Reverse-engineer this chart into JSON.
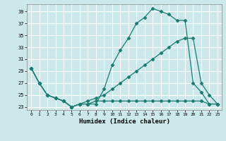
{
  "xlabel": "Humidex (Indice chaleur)",
  "background_color": "#cce8ea",
  "grid_color": "#ffffff",
  "line_color": "#1b7b70",
  "xlim": [
    -0.5,
    23.5
  ],
  "ylim": [
    22.5,
    40.2
  ],
  "xticks": [
    0,
    1,
    2,
    3,
    4,
    5,
    6,
    7,
    8,
    9,
    10,
    11,
    12,
    13,
    14,
    15,
    16,
    17,
    18,
    19,
    20,
    21,
    22,
    23
  ],
  "yticks": [
    23,
    25,
    27,
    29,
    31,
    33,
    35,
    37,
    39
  ],
  "line1_x": [
    0,
    1,
    2,
    3,
    4,
    5,
    6,
    7,
    8,
    9,
    10,
    11,
    12,
    13,
    14,
    15,
    16,
    17,
    18,
    19,
    20,
    21,
    22,
    23
  ],
  "line1_y": [
    29.5,
    27,
    25,
    24.5,
    24,
    23,
    23.5,
    23.5,
    23.5,
    26,
    30,
    32.5,
    34.5,
    37,
    38,
    39.5,
    39,
    38.5,
    37.5,
    37.5,
    27,
    25.5,
    23.5,
    23.5
  ],
  "line2_x": [
    0,
    1,
    2,
    3,
    4,
    5,
    6,
    7,
    8,
    9,
    10,
    11,
    12,
    13,
    14,
    15,
    16,
    17,
    18,
    19,
    20,
    21,
    22,
    23
  ],
  "line2_y": [
    29.5,
    27,
    25,
    24.5,
    24,
    23,
    23.5,
    23.5,
    24,
    24,
    24,
    24,
    24,
    24,
    24,
    24,
    24,
    24,
    24,
    24,
    24,
    24,
    23.5,
    23.5
  ],
  "line3_x": [
    0,
    1,
    2,
    3,
    4,
    5,
    6,
    7,
    8,
    9,
    10,
    11,
    12,
    13,
    14,
    15,
    16,
    17,
    18,
    19,
    20,
    21,
    22,
    23
  ],
  "line3_y": [
    29.5,
    27,
    25,
    24.5,
    24,
    23,
    23.5,
    24,
    24.5,
    25,
    26,
    27,
    28,
    29,
    30,
    31,
    32,
    33,
    34,
    34.5,
    34.5,
    27,
    25,
    23.5
  ]
}
